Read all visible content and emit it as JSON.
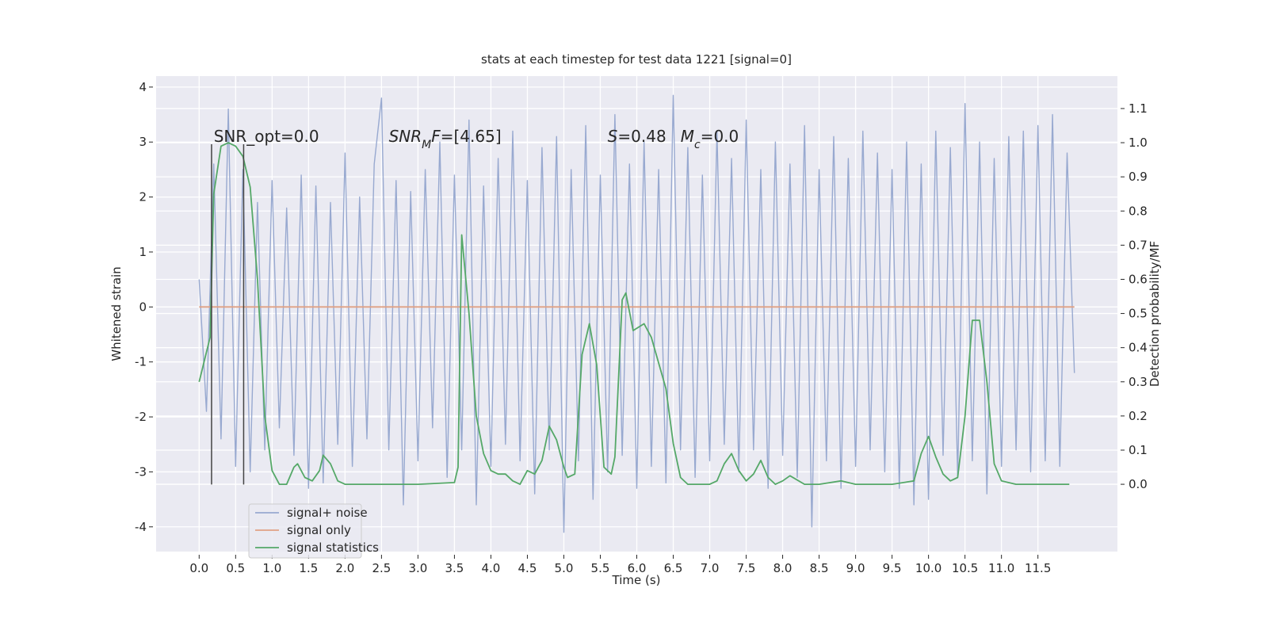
{
  "chart_data": {
    "type": "line",
    "title": "stats at each timestep for test data 1221 [signal=0]",
    "xlabel": "Time (s)",
    "ylabel": "Whitened strain",
    "y2label": "Detection probability/MF",
    "xlim": [
      -0.59,
      12.59
    ],
    "ylim": [
      -4.45,
      4.2
    ],
    "y2lim": [
      -0.197,
      1.195
    ],
    "xticks": [
      {
        "value": 0,
        "label": "0.0"
      },
      0.5,
      {
        "value": 1,
        "label": "1.0"
      },
      1.5,
      {
        "value": 2,
        "label": "2.0"
      },
      2.5,
      {
        "value": 3,
        "label": "3.0"
      },
      3.5,
      {
        "value": 4,
        "label": "4.0"
      },
      4.5,
      {
        "value": 5,
        "label": "5.0"
      },
      5.5,
      {
        "value": 6,
        "label": "6.0"
      },
      6.5,
      {
        "value": 7,
        "label": "7.0"
      },
      7.5,
      {
        "value": 8,
        "label": "8.0"
      },
      8.5,
      {
        "value": 9,
        "label": "9.0"
      },
      9.5,
      {
        "value": 10,
        "label": "10.0"
      },
      10.5,
      {
        "value": 11,
        "label": "11.0"
      },
      11.5
    ],
    "yticks": [
      -4,
      -3,
      -2,
      -1,
      0,
      1,
      2,
      3,
      4
    ],
    "y2ticks": [
      {
        "value": 0,
        "label": "0.0"
      },
      0.1,
      0.2,
      0.3,
      0.4,
      0.5,
      0.6,
      0.7,
      0.8,
      0.9,
      {
        "value": 1,
        "label": "1.0"
      },
      1.1
    ],
    "grid": true,
    "legend": "lower left",
    "series": [
      {
        "name": "signal+ noise",
        "color": "#98a9d0",
        "axis": "y",
        "x": [
          0,
          0.1,
          0.2,
          0.3,
          0.4,
          0.5,
          0.6,
          0.7,
          0.8,
          0.9,
          1,
          1.1,
          1.2,
          1.3,
          1.4,
          1.5,
          1.6,
          1.7,
          1.8,
          1.9,
          2,
          2.1,
          2.2,
          2.3,
          2.4,
          2.5,
          2.6,
          2.7,
          2.8,
          2.9,
          3,
          3.1,
          3.2,
          3.3,
          3.4,
          3.5,
          3.6,
          3.7,
          3.8,
          3.9,
          4,
          4.1,
          4.2,
          4.3,
          4.4,
          4.5,
          4.6,
          4.7,
          4.8,
          4.9,
          5,
          5.1,
          5.2,
          5.3,
          5.4,
          5.5,
          5.6,
          5.7,
          5.8,
          5.9,
          6,
          6.1,
          6.2,
          6.3,
          6.4,
          6.5,
          6.6,
          6.7,
          6.8,
          6.9,
          7,
          7.1,
          7.2,
          7.3,
          7.4,
          7.5,
          7.6,
          7.7,
          7.8,
          7.9,
          8,
          8.1,
          8.2,
          8.3,
          8.4,
          8.5,
          8.6,
          8.7,
          8.8,
          8.9,
          9,
          9.1,
          9.2,
          9.3,
          9.4,
          9.5,
          9.6,
          9.7,
          9.8,
          9.9,
          10,
          10.1,
          10.2,
          10.3,
          10.4,
          10.5,
          10.6,
          10.7,
          10.8,
          10.9,
          11,
          11.1,
          11.2,
          11.3,
          11.4,
          11.5,
          11.6,
          11.7,
          11.8,
          11.9,
          12
        ],
        "values": [
          0.5,
          -1.9,
          2.6,
          -2.4,
          3.6,
          -2.9,
          2.5,
          -3.0,
          1.9,
          -2.6,
          2.3,
          -2.2,
          1.8,
          -2.7,
          2.4,
          -3.3,
          2.2,
          -3.2,
          1.9,
          -2.5,
          2.8,
          -2.9,
          2.0,
          -2.4,
          2.6,
          3.8,
          -2.6,
          2.3,
          -3.6,
          2.1,
          -2.8,
          2.5,
          -2.2,
          3.0,
          -3.1,
          2.4,
          -2.6,
          3.4,
          -3.6,
          2.2,
          -2.9,
          2.7,
          -2.5,
          3.2,
          -2.8,
          2.3,
          -3.4,
          2.9,
          -2.6,
          3.1,
          -4.1,
          2.5,
          -2.8,
          3.3,
          -3.5,
          2.4,
          -3.0,
          3.5,
          -2.7,
          2.6,
          -3.3,
          3.0,
          -2.9,
          2.5,
          -3.2,
          3.85,
          -2.6,
          2.9,
          -3.1,
          2.4,
          -2.8,
          3.2,
          -2.5,
          2.7,
          -3.0,
          3.4,
          -2.6,
          2.5,
          -3.3,
          3.0,
          -2.7,
          2.6,
          -3.1,
          3.3,
          -4.0,
          2.5,
          -2.8,
          3.1,
          -3.3,
          2.7,
          -2.9,
          3.2,
          -2.6,
          2.8,
          -3.0,
          2.5,
          -3.3,
          3.0,
          -3.6,
          2.6,
          -3.5,
          3.2,
          -2.7,
          2.9,
          -3.1,
          3.7,
          -2.8,
          3.0,
          -3.4,
          2.7,
          -2.9,
          3.1,
          -2.6,
          3.2,
          -3.0,
          3.3,
          -2.8,
          3.5,
          -2.9,
          2.8,
          -1.2
        ]
      },
      {
        "name": "signal only",
        "color": "#e0a184",
        "axis": "y",
        "x": [
          0,
          12
        ],
        "values": [
          0,
          0
        ]
      },
      {
        "name": "signal statistics",
        "color": "#55a868",
        "axis": "y2",
        "x": [
          0,
          0.15,
          0.2,
          0.3,
          0.4,
          0.5,
          0.6,
          0.7,
          0.8,
          0.9,
          1,
          1.1,
          1.2,
          1.3,
          1.35,
          1.45,
          1.55,
          1.65,
          1.7,
          1.8,
          1.9,
          2,
          2.5,
          3,
          3.5,
          3.55,
          3.6,
          3.7,
          3.8,
          3.9,
          4,
          4.1,
          4.2,
          4.3,
          4.4,
          4.5,
          4.6,
          4.7,
          4.8,
          4.9,
          5,
          5.05,
          5.15,
          5.25,
          5.35,
          5.45,
          5.55,
          5.65,
          5.7,
          5.8,
          5.85,
          5.95,
          6.1,
          6.2,
          6.4,
          6.5,
          6.6,
          6.7,
          7,
          7.1,
          7.2,
          7.3,
          7.4,
          7.5,
          7.6,
          7.7,
          7.8,
          7.9,
          8,
          8.1,
          8.3,
          8.5,
          8.8,
          9,
          9.5,
          9.8,
          9.9,
          10,
          10.1,
          10.2,
          10.3,
          10.4,
          10.5,
          10.6,
          10.7,
          10.8,
          10.9,
          11,
          11.2,
          11.93
        ],
        "values": [
          0.3,
          0.43,
          0.85,
          0.99,
          1.0,
          0.99,
          0.96,
          0.87,
          0.6,
          0.2,
          0.04,
          0.0,
          0.0,
          0.05,
          0.06,
          0.02,
          0.01,
          0.04,
          0.085,
          0.06,
          0.01,
          0.0,
          0.0,
          0.0,
          0.005,
          0.05,
          0.73,
          0.5,
          0.2,
          0.09,
          0.04,
          0.03,
          0.03,
          0.01,
          0.0,
          0.04,
          0.03,
          0.07,
          0.17,
          0.13,
          0.05,
          0.02,
          0.03,
          0.38,
          0.47,
          0.35,
          0.05,
          0.03,
          0.08,
          0.54,
          0.56,
          0.45,
          0.47,
          0.43,
          0.28,
          0.12,
          0.02,
          0.0,
          0.0,
          0.01,
          0.06,
          0.09,
          0.04,
          0.01,
          0.03,
          0.07,
          0.02,
          0.0,
          0.01,
          0.025,
          0.0,
          0.0,
          0.01,
          0.0,
          0.0,
          0.01,
          0.09,
          0.14,
          0.08,
          0.03,
          0.01,
          0.02,
          0.2,
          0.48,
          0.48,
          0.3,
          0.06,
          0.01,
          0.0,
          0.0
        ]
      }
    ],
    "vlines": {
      "x": [
        0.17,
        0.61
      ],
      "ymin": -3.23,
      "ymax": 2.96,
      "color": "#444444"
    },
    "annotations": [
      {
        "x": 0.2,
        "y": 3.0,
        "parts": [
          {
            "text": "SNR_opt=0.0"
          }
        ]
      },
      {
        "x": 2.6,
        "y": 3.0,
        "parts": [
          {
            "text": "SNR",
            "italic": true
          },
          {
            "text": "M",
            "italic": true,
            "sub": true
          },
          {
            "text": "F",
            "italic": true
          },
          {
            "text": "=[4.65]"
          }
        ]
      },
      {
        "x": 5.6,
        "y": 3.0,
        "parts": [
          {
            "text": "S",
            "italic": true
          },
          {
            "text": "=0.48"
          }
        ]
      },
      {
        "x": 6.6,
        "y": 3.0,
        "parts": [
          {
            "text": "M",
            "italic": true
          },
          {
            "text": "c",
            "italic": true,
            "sub": true
          },
          {
            "text": "=0.0"
          }
        ]
      }
    ]
  }
}
